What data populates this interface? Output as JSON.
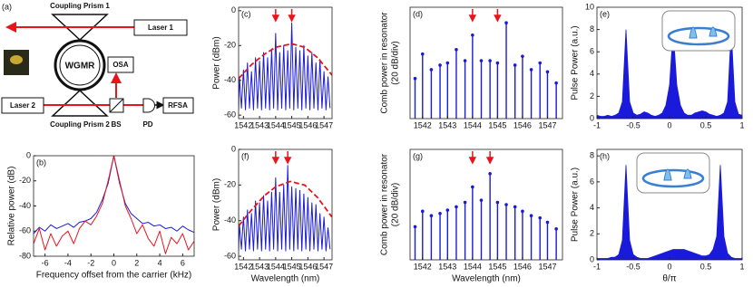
{
  "diagram": {
    "label": "(a)",
    "prism1": "Coupling Prism 1",
    "laser1": "Laser 1",
    "wgmr": "WGMR",
    "osa": "OSA",
    "laser2": "Laser 2",
    "prism2": "Coupling Prism 2",
    "bs": "BS",
    "pd": "PD",
    "rfsa": "RFSA"
  },
  "chart_data": [
    {
      "type": "line",
      "label": "(b)",
      "xlabel": "Frequency offset from the carrier (kHz)",
      "ylabel": "Relative power (dB)",
      "xlim": [
        -7,
        7
      ],
      "xticks": [
        -6,
        -4,
        -2,
        0,
        2,
        4,
        6
      ],
      "ylim": [
        -80,
        0
      ],
      "yticks": [
        -80,
        -60,
        -40,
        -20,
        0
      ],
      "x": [
        -7,
        -6.5,
        -6,
        -5.5,
        -5,
        -4.5,
        -4,
        -3.5,
        -3,
        -2.5,
        -2,
        -1.5,
        -1,
        -0.5,
        0,
        0.5,
        1,
        1.5,
        2,
        2.5,
        3,
        3.5,
        4,
        4.5,
        5,
        5.5,
        6,
        6.5,
        7
      ],
      "series": [
        {
          "color": "#1a1adb",
          "values": [
            -62,
            -57,
            -60,
            -55,
            -58,
            -56,
            -54,
            -57,
            -53,
            -52,
            -50,
            -45,
            -35,
            -22,
            0,
            -22,
            -38,
            -46,
            -50,
            -54,
            -53,
            -56,
            -55,
            -58,
            -57,
            -60,
            -56,
            -59,
            -61
          ]
        },
        {
          "color": "#e8141c",
          "values": [
            -70,
            -58,
            -75,
            -62,
            -72,
            -64,
            -60,
            -70,
            -58,
            -52,
            -55,
            -48,
            -38,
            -20,
            0,
            -20,
            -40,
            -50,
            -62,
            -55,
            -66,
            -72,
            -60,
            -78,
            -65,
            -70,
            -62,
            -75,
            -68
          ]
        }
      ]
    },
    {
      "type": "line",
      "label": "(c)",
      "ylabel": "Power (dBm)",
      "xlim": [
        1541.7,
        1547.5
      ],
      "xticks": [
        1542,
        1543,
        1544,
        1545,
        1546,
        1547
      ],
      "ylim": [
        -62,
        2
      ],
      "yticks": [
        -60,
        -40,
        -20,
        0
      ],
      "series": [
        {
          "color": "#1a1adb",
          "line_style": "solid",
          "x": [
            1541.7,
            1541.75,
            1541.875,
            1542,
            1542.125,
            1542.25,
            1542.375,
            1542.5,
            1542.625,
            1542.75,
            1542.875,
            1543,
            1543.125,
            1543.25,
            1543.375,
            1543.5,
            1543.625,
            1543.75,
            1543.875,
            1544,
            1544.125,
            1544.25,
            1544.375,
            1544.5,
            1544.625,
            1544.75,
            1544.875,
            1545,
            1545.125,
            1545.25,
            1545.375,
            1545.5,
            1545.625,
            1545.75,
            1545.875,
            1546,
            1546.125,
            1546.25,
            1546.375,
            1546.5,
            1546.625,
            1546.75,
            1546.875,
            1547,
            1547.125,
            1547.25,
            1547.375
          ],
          "values": [
            -57,
            -38,
            -56,
            -34,
            -57,
            -30,
            -56,
            -35,
            -57,
            -27,
            -56,
            -29,
            -57,
            -24,
            -56,
            -27,
            -57,
            -22,
            -56,
            -13,
            -57,
            -24,
            -56,
            -20,
            -57,
            -23,
            -56,
            -7,
            -57,
            -21,
            -56,
            -23,
            -57,
            -20,
            -56,
            -26,
            -57,
            -24,
            -56,
            -30,
            -57,
            -28,
            -56,
            -35,
            -57,
            -38,
            -56
          ]
        },
        {
          "color": "#e8141c",
          "line_style": "dashed",
          "x": [
            1541.7,
            1542.5,
            1543.3,
            1544,
            1545,
            1545.8,
            1546.6,
            1547.5
          ],
          "values": [
            -39,
            -31,
            -25,
            -21,
            -19,
            -21,
            -27,
            -37
          ]
        }
      ],
      "arrows": {
        "color": "#e8141c",
        "x": [
          1544,
          1545
        ]
      }
    },
    {
      "type": "stem",
      "label": "(d)",
      "ylabel": [
        "Comb power in resonator",
        "(20 dB/div)"
      ],
      "color": "#1a1adb",
      "xlim": [
        1541.5,
        1547.6
      ],
      "xticks": [
        1542,
        1543,
        1544,
        1545,
        1546,
        1547
      ],
      "ylim": [
        0,
        100
      ],
      "x": [
        1541.7,
        1542,
        1542.35,
        1542.7,
        1543,
        1543.35,
        1543.7,
        1544,
        1544.35,
        1544.7,
        1545,
        1545.35,
        1545.7,
        1546,
        1546.35,
        1546.7,
        1547,
        1547.35
      ],
      "values": [
        36,
        58,
        44,
        48,
        50,
        62,
        52,
        75,
        52,
        52,
        50,
        86,
        48,
        56,
        44,
        50,
        42,
        32
      ],
      "arrows": {
        "color": "#e8141c",
        "x": [
          1544,
          1545
        ]
      }
    },
    {
      "type": "area",
      "label": "(e)",
      "ylabel": "Pulse Power (a.u.)",
      "color": "#1a1adb",
      "xlim": [
        -1,
        1
      ],
      "xticks": [
        -1,
        -0.5,
        0,
        0.5,
        1
      ],
      "ylim": [
        0,
        10
      ],
      "yticks": [
        0,
        2,
        4,
        6,
        8,
        10
      ],
      "x": [
        -1,
        -0.95,
        -0.9,
        -0.85,
        -0.8,
        -0.75,
        -0.7,
        -0.65,
        -0.6,
        -0.55,
        -0.5,
        -0.45,
        -0.4,
        -0.35,
        -0.3,
        -0.25,
        -0.2,
        -0.15,
        -0.1,
        -0.05,
        0,
        0.05,
        0.1,
        0.15,
        0.2,
        0.25,
        0.3,
        0.35,
        0.4,
        0.45,
        0.5,
        0.55,
        0.6,
        0.65,
        0.7,
        0.75,
        0.8,
        0.85,
        0.9,
        0.95,
        1
      ],
      "values": [
        0.3,
        0.2,
        0.2,
        0.3,
        0.2,
        0.3,
        0.5,
        1.5,
        8,
        1.5,
        0.5,
        0.3,
        0.4,
        0.6,
        0.5,
        0.3,
        0.2,
        0.3,
        0.5,
        1.2,
        3,
        8,
        3,
        1.2,
        0.5,
        0.3,
        0.3,
        0.5,
        0.6,
        0.7,
        0.6,
        0.4,
        0.3,
        0.2,
        0.3,
        0.5,
        1.5,
        8,
        1.5,
        0.4,
        0.3
      ]
    },
    {
      "type": "line",
      "label": "(f)",
      "xlabel": "Wavelength (nm)",
      "ylabel": "Power (dBm)",
      "xlim": [
        1541.7,
        1547.5
      ],
      "xticks": [
        1542,
        1543,
        1544,
        1545,
        1546,
        1547
      ],
      "ylim": [
        -62,
        0
      ],
      "yticks": [
        -60,
        -40,
        -20,
        0
      ],
      "series": [
        {
          "color": "#1a1adb",
          "line_style": "solid",
          "x": [
            1541.7,
            1541.75,
            1541.875,
            1542,
            1542.125,
            1542.25,
            1542.375,
            1542.5,
            1542.625,
            1542.75,
            1542.875,
            1543,
            1543.125,
            1543.25,
            1543.375,
            1543.5,
            1543.625,
            1543.75,
            1543.875,
            1544,
            1544.125,
            1544.25,
            1544.375,
            1544.5,
            1544.625,
            1544.75,
            1544.875,
            1545,
            1545.125,
            1545.25,
            1545.375,
            1545.5,
            1545.625,
            1545.75,
            1545.875,
            1546,
            1546.125,
            1546.25,
            1546.375,
            1546.5,
            1546.625,
            1546.75,
            1546.875,
            1547,
            1547.125,
            1547.25,
            1547.375
          ],
          "values": [
            -57,
            -42,
            -56,
            -38,
            -57,
            -34,
            -56,
            -36,
            -57,
            -29,
            -56,
            -30,
            -57,
            -26,
            -56,
            -29,
            -57,
            -24,
            -56,
            -16,
            -57,
            -24,
            -56,
            -20,
            -57,
            -9,
            -56,
            -21,
            -57,
            -22,
            -56,
            -23,
            -57,
            -25,
            -56,
            -27,
            -57,
            -30,
            -56,
            -31,
            -57,
            -36,
            -56,
            -38,
            -57,
            -44,
            -56
          ]
        },
        {
          "color": "#e8141c",
          "line_style": "dashed",
          "x": [
            1541.7,
            1542.5,
            1543.3,
            1544,
            1544.9,
            1545.8,
            1546.6,
            1547.5
          ],
          "values": [
            -43,
            -34,
            -26,
            -21,
            -18,
            -20,
            -27,
            -38
          ]
        }
      ],
      "arrows": {
        "color": "#e8141c",
        "x": [
          1544,
          1544.75
        ]
      }
    },
    {
      "type": "stem",
      "label": "(g)",
      "xlabel": "Wavelength (nm)",
      "ylabel": [
        "Comb power in resonator",
        "(20 dB/div)"
      ],
      "color": "#1a1adb",
      "xlim": [
        1541.5,
        1547.6
      ],
      "xticks": [
        1542,
        1543,
        1544,
        1545,
        1546,
        1547
      ],
      "ylim": [
        0,
        100
      ],
      "x": [
        1541.7,
        1542,
        1542.35,
        1542.7,
        1543,
        1543.35,
        1543.7,
        1544,
        1544.35,
        1544.7,
        1545,
        1545.35,
        1545.7,
        1546,
        1546.35,
        1546.7,
        1547,
        1547.35
      ],
      "values": [
        30,
        44,
        40,
        42,
        45,
        48,
        52,
        66,
        54,
        78,
        52,
        50,
        48,
        44,
        40,
        38,
        34,
        28
      ],
      "arrows": {
        "color": "#e8141c",
        "x": [
          1544,
          1544.7
        ]
      }
    },
    {
      "type": "area",
      "label": "(h)",
      "xlabel": "θ/π",
      "ylabel": "Pulse Power (a.u.)",
      "color": "#1a1adb",
      "xlim": [
        -1,
        1
      ],
      "xticks": [
        -1,
        -0.5,
        0,
        0.5,
        1
      ],
      "ylim": [
        0,
        8.5
      ],
      "yticks": [
        0,
        2,
        4,
        6,
        8
      ],
      "x": [
        -1,
        -0.95,
        -0.9,
        -0.85,
        -0.8,
        -0.75,
        -0.7,
        -0.65,
        -0.6,
        -0.55,
        -0.5,
        -0.45,
        -0.4,
        -0.35,
        -0.3,
        -0.25,
        -0.2,
        -0.15,
        -0.1,
        -0.05,
        0,
        0.05,
        0.1,
        0.15,
        0.2,
        0.25,
        0.3,
        0.35,
        0.4,
        0.45,
        0.5,
        0.55,
        0.6,
        0.65,
        0.7,
        0.75,
        0.8,
        0.85,
        0.9,
        0.95,
        1
      ],
      "values": [
        0.1,
        0.1,
        0.1,
        0.1,
        0.2,
        0.2,
        0.4,
        1.5,
        7.3,
        1.5,
        0.4,
        0.2,
        0.1,
        0.1,
        0.1,
        0.2,
        0.3,
        0.4,
        0.5,
        0.6,
        0.7,
        0.8,
        0.8,
        0.8,
        0.8,
        0.7,
        0.6,
        0.5,
        0.4,
        0.3,
        0.3,
        0.4,
        0.8,
        1.8,
        7.3,
        1.8,
        0.5,
        0.2,
        0.1,
        0.1,
        0.1
      ]
    }
  ]
}
